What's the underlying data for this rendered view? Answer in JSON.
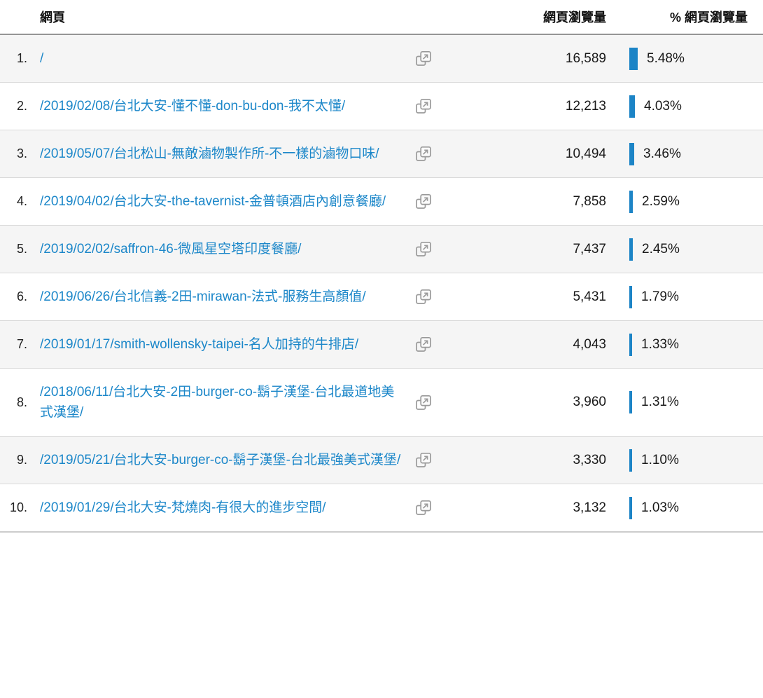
{
  "table": {
    "columns": {
      "page": "網頁",
      "pageviews": "網頁瀏覽量",
      "pct_pageviews": "% 網頁瀏覽量"
    },
    "rows": [
      {
        "rank": "1.",
        "url": "/",
        "pageviews": "16,589",
        "pct_label": "5.48%",
        "pct_value": 5.48
      },
      {
        "rank": "2.",
        "url": "/2019/02/08/台北大安-懂不懂-don-bu-don-我不太懂/",
        "pageviews": "12,213",
        "pct_label": "4.03%",
        "pct_value": 4.03
      },
      {
        "rank": "3.",
        "url": "/2019/05/07/台北松山-無敵滷物製作所-不一樣的滷物口味/",
        "pageviews": "10,494",
        "pct_label": "3.46%",
        "pct_value": 3.46
      },
      {
        "rank": "4.",
        "url": "/2019/04/02/台北大安-the-tavernist-金普頓酒店內創意餐廳/",
        "pageviews": "7,858",
        "pct_label": "2.59%",
        "pct_value": 2.59
      },
      {
        "rank": "5.",
        "url": "/2019/02/02/saffron-46-微風星空塔印度餐廳/",
        "pageviews": "7,437",
        "pct_label": "2.45%",
        "pct_value": 2.45
      },
      {
        "rank": "6.",
        "url": "/2019/06/26/台北信義-2田-mirawan-法式-服務生高顏值/",
        "pageviews": "5,431",
        "pct_label": "1.79%",
        "pct_value": 1.79
      },
      {
        "rank": "7.",
        "url": "/2019/01/17/smith-wollensky-taipei-名人加持的牛排店/",
        "pageviews": "4,043",
        "pct_label": "1.33%",
        "pct_value": 1.33
      },
      {
        "rank": "8.",
        "url": "/2018/06/11/台北大安-2田-burger-co-鬍子漢堡-台北最道地美式漢堡/",
        "pageviews": "3,960",
        "pct_label": "1.31%",
        "pct_value": 1.31
      },
      {
        "rank": "9.",
        "url": "/2019/05/21/台北大安-burger-co-鬍子漢堡-台北最強美式漢堡/",
        "pageviews": "3,330",
        "pct_label": "1.10%",
        "pct_value": 1.1
      },
      {
        "rank": "10.",
        "url": "/2019/01/29/台北大安-梵燒肉-有很大的進步空間/",
        "pageviews": "3,132",
        "pct_label": "1.03%",
        "pct_value": 1.03
      }
    ]
  },
  "icons": {
    "external_link": "open-page-in-new-window"
  },
  "colors": {
    "link_blue": "#1c87c9",
    "bar_blue": "#1c84c6",
    "alt_row_bg": "#f5f5f5"
  }
}
